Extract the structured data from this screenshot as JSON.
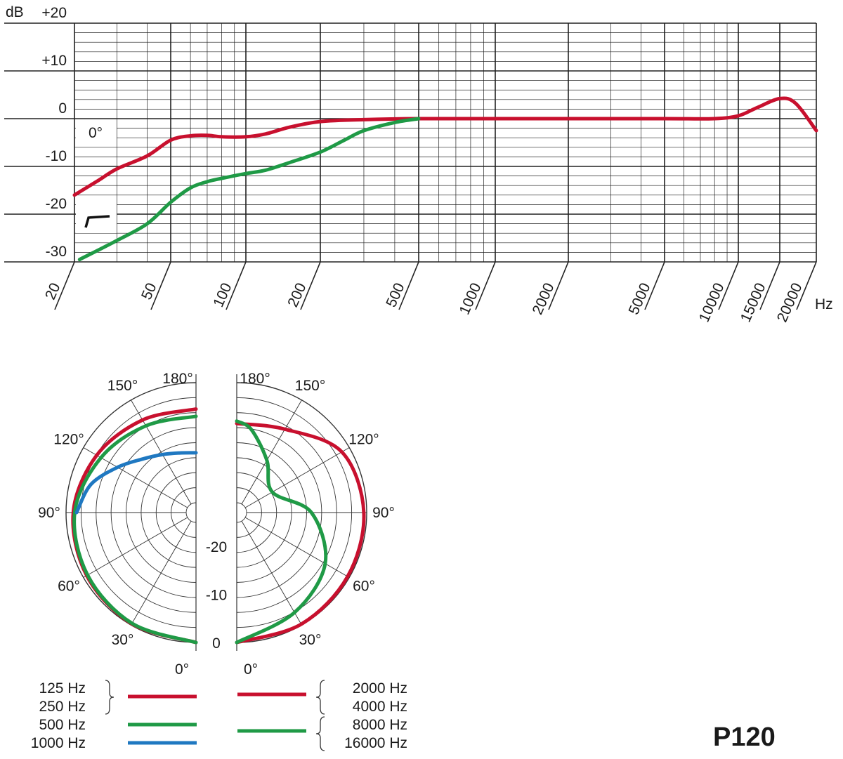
{
  "chart_data": [
    {
      "type": "line",
      "ylabel": "dB",
      "xlabel": "Hz",
      "yscale": "linear",
      "xscale": "log",
      "ylim": [
        -30,
        20
      ],
      "xlim": [
        20,
        20000
      ],
      "y_ticks": [
        "+20",
        "+10",
        "0",
        "-10",
        "-20",
        "-30"
      ],
      "x_ticks": [
        "20",
        "50",
        "100",
        "200",
        "500",
        "1000",
        "2000",
        "5000",
        "10000",
        "15000",
        "20000"
      ],
      "grid": true,
      "annotations": {
        "angle": "0°",
        "filter_symbol": "high-pass (low-cut) filter"
      },
      "colors": {
        "red": "#c8102e",
        "green": "#1f9a46"
      },
      "series": [
        {
          "color": "red",
          "x": [
            20,
            25,
            30,
            40,
            50,
            60,
            70,
            80,
            100,
            120,
            150,
            200,
            300,
            500,
            1000,
            2000,
            5000,
            8000,
            10000,
            12000,
            15000,
            17000,
            20000
          ],
          "y": [
            -16.0,
            -13.0,
            -10.5,
            -7.8,
            -4.5,
            -3.6,
            -3.5,
            -3.8,
            -3.8,
            -3.2,
            -1.8,
            -0.6,
            -0.2,
            0.0,
            0.0,
            0.0,
            0.0,
            0.0,
            0.6,
            2.3,
            4.2,
            3.2,
            -2.5
          ]
        },
        {
          "color": "green",
          "x": [
            21,
            30,
            40,
            50,
            60,
            70,
            80,
            100,
            120,
            150,
            200,
            250,
            300,
            400,
            500
          ],
          "y": [
            -29.5,
            -25.5,
            -22.0,
            -17.5,
            -14.5,
            -13.2,
            -12.5,
            -11.5,
            -10.8,
            -9.2,
            -7.0,
            -4.5,
            -2.5,
            -0.8,
            0.0
          ]
        }
      ]
    },
    {
      "type": "polar",
      "angle_labels_left": [
        "180°",
        "150°",
        "120°",
        "90°",
        "60°",
        "30°",
        "0°"
      ],
      "angle_labels_right": [
        "180°",
        "150°",
        "120°",
        "90°",
        "60°",
        "30°",
        "0°"
      ],
      "radial_labels": [
        "-20",
        "-10",
        "0"
      ],
      "radial_range_db": [
        -25,
        0
      ],
      "legend": {
        "left": [
          {
            "lines": [
              "125 Hz",
              "250 Hz"
            ],
            "color": "red"
          },
          {
            "lines": [
              "500 Hz"
            ],
            "color": "green"
          },
          {
            "lines": [
              "1000 Hz"
            ],
            "color": "blue"
          }
        ],
        "right": [
          {
            "lines": [
              "2000 Hz",
              "4000 Hz"
            ],
            "color": "red"
          },
          {
            "lines": [
              "8000 Hz",
              "16000 Hz"
            ],
            "color": "green"
          }
        ]
      },
      "colors": {
        "red": "#c8102e",
        "green": "#1f9a46",
        "blue": "#1f78c1"
      },
      "series": [
        {
          "side": "left",
          "color": "red",
          "angles_deg": [
            0,
            30,
            60,
            90,
            120,
            150,
            180
          ],
          "level_db": [
            0,
            -0.3,
            -0.8,
            -1.5,
            -3.2,
            -4.8,
            -5.5
          ]
        },
        {
          "side": "left",
          "color": "green",
          "angles_deg": [
            0,
            30,
            60,
            90,
            120,
            150,
            180
          ],
          "level_db": [
            0,
            -0.4,
            -1.0,
            -1.8,
            -4.2,
            -6.2,
            -7.0
          ]
        },
        {
          "side": "left",
          "color": "blue",
          "angles_deg": [
            90,
            105,
            120,
            135,
            150,
            165,
            180
          ],
          "level_db": [
            -2.2,
            -4.4,
            -8.2,
            -11.3,
            -13.1,
            -14.2,
            -14.6
          ]
        },
        {
          "side": "right",
          "color": "red",
          "angles_deg": [
            0,
            30,
            60,
            90,
            120,
            150,
            180
          ],
          "level_db": [
            0,
            -0.2,
            -0.4,
            -0.6,
            -1.8,
            -7.0,
            -8.5
          ]
        },
        {
          "side": "right",
          "color": "green",
          "angles_deg": [
            0,
            30,
            60,
            90,
            120,
            150,
            170,
            180
          ],
          "level_db": [
            0,
            -3.0,
            -5.8,
            -11.5,
            -18.5,
            -14.5,
            -9.5,
            -8.0
          ]
        }
      ]
    }
  ],
  "model_name": "P120"
}
